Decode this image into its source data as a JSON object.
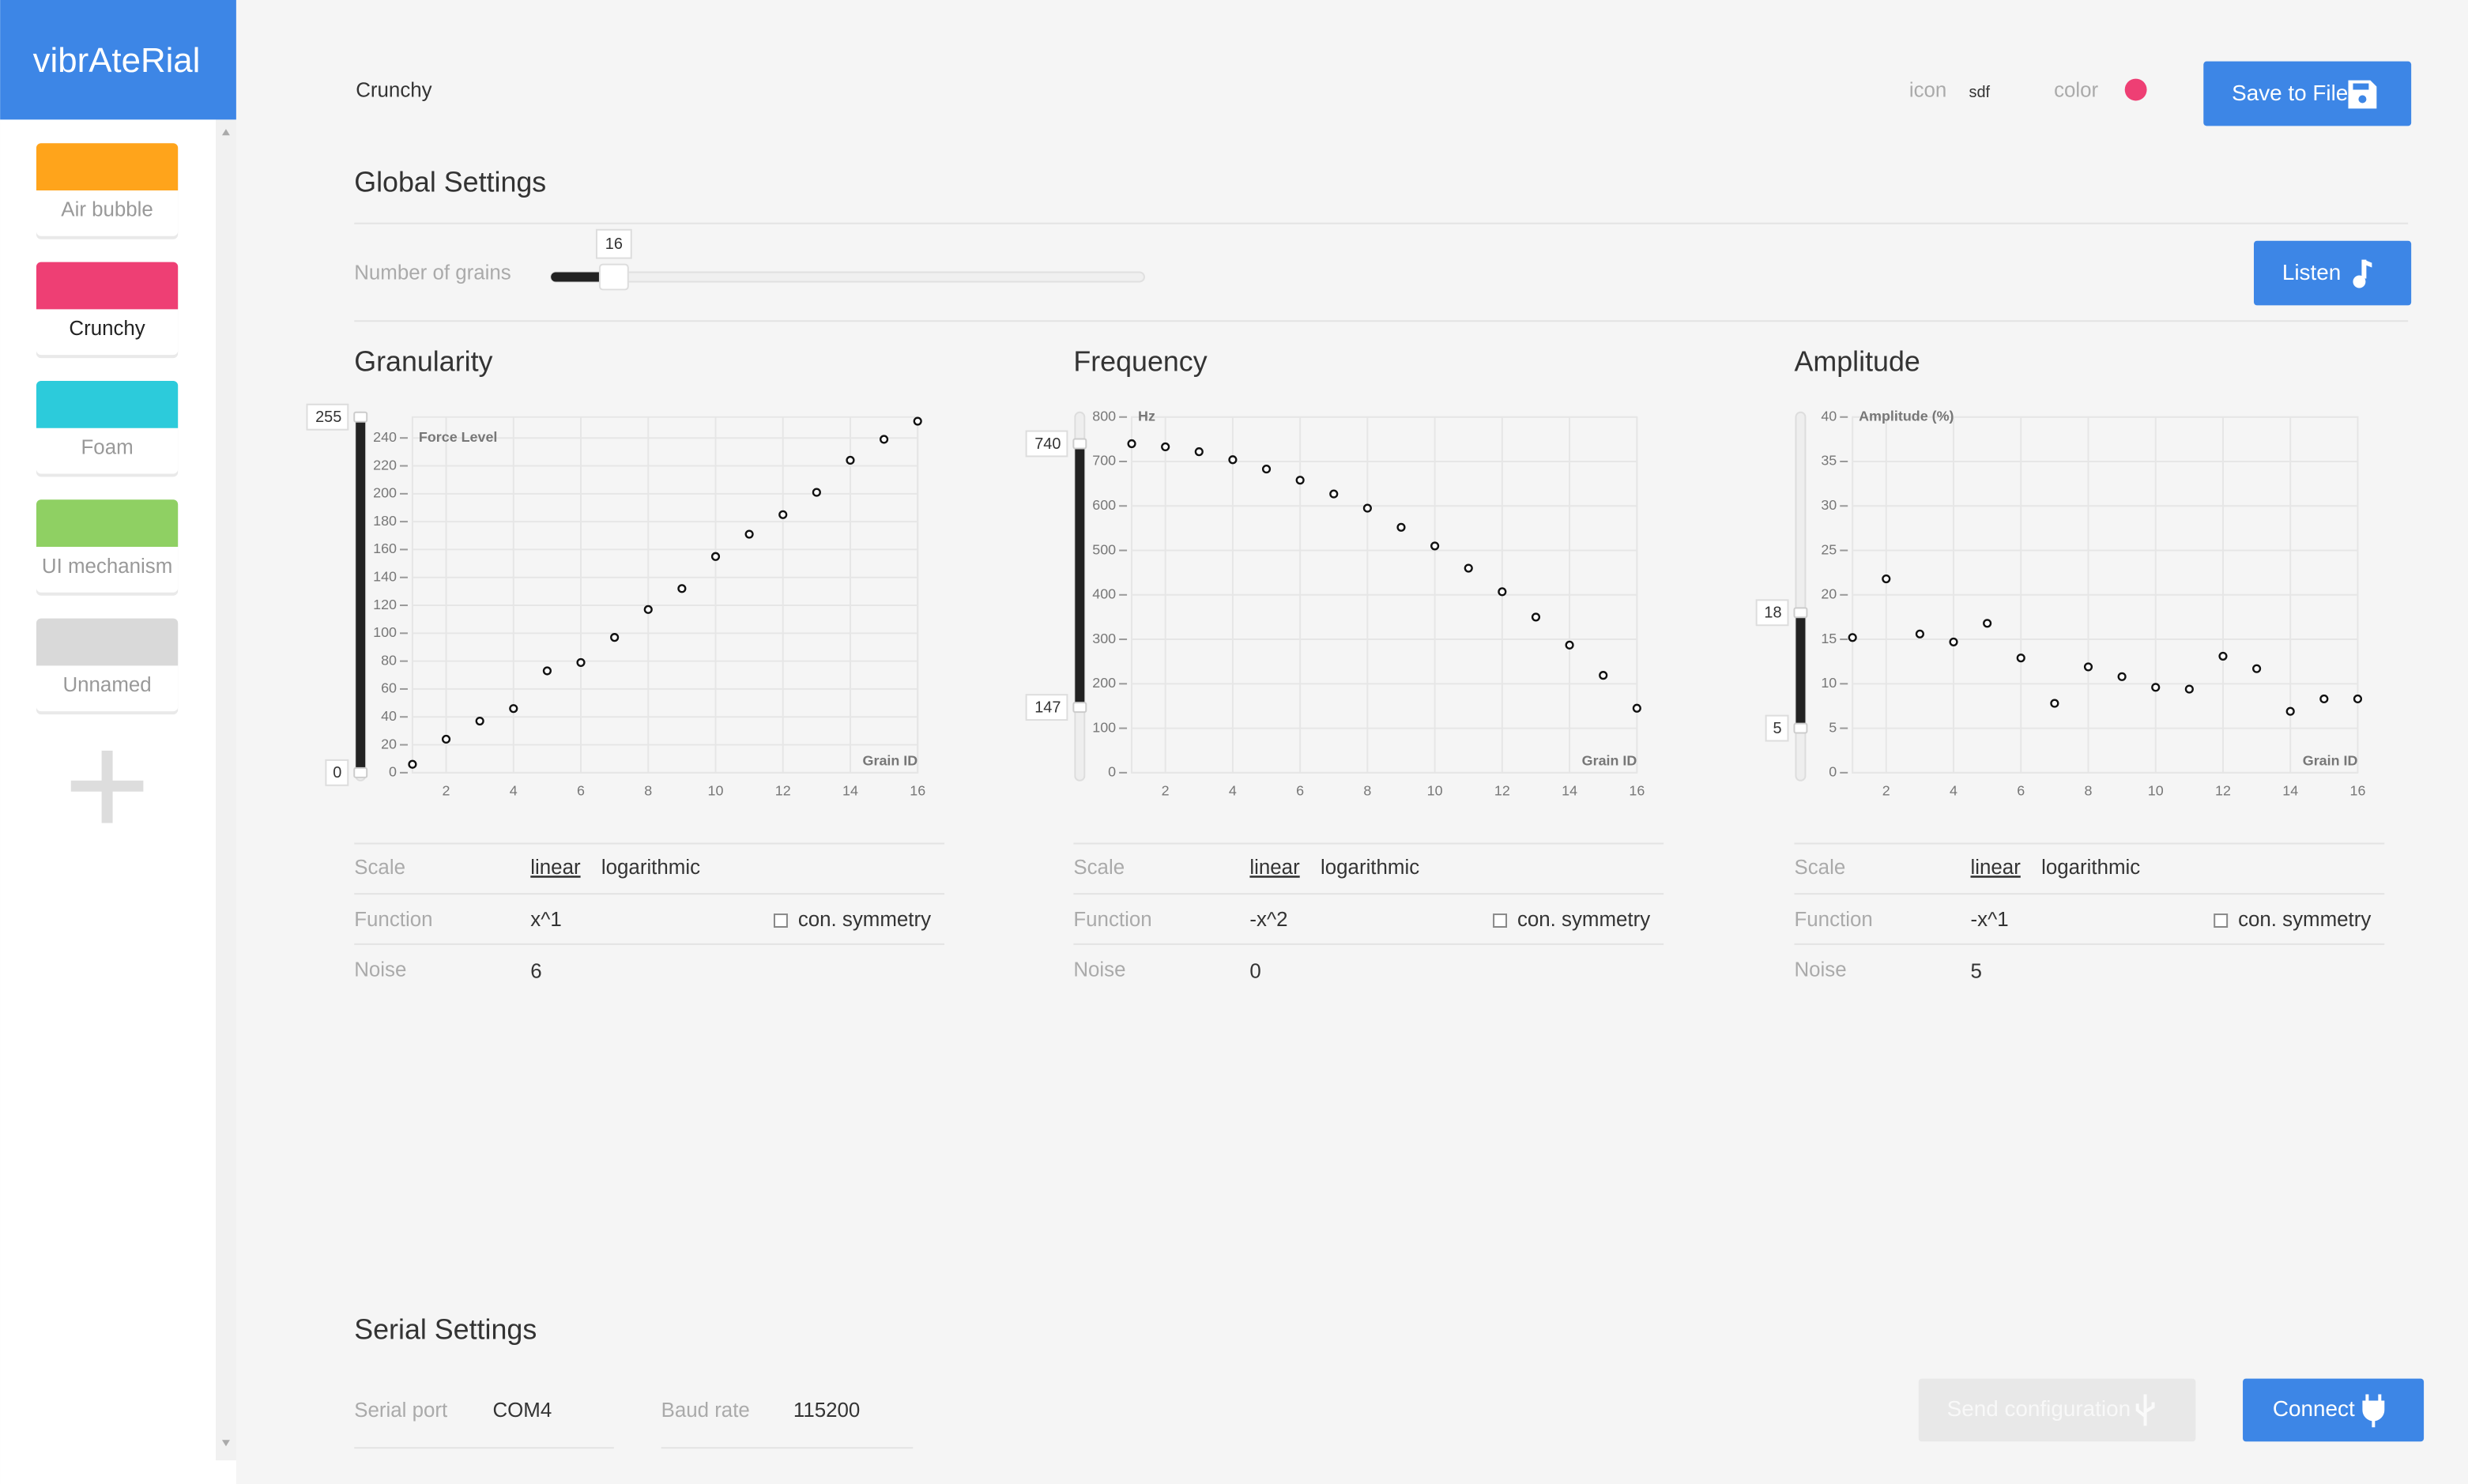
{
  "sidebar": {
    "brand": "vibrAteRial",
    "materials": [
      {
        "name": "Air bubble",
        "color": "#ffa41b"
      },
      {
        "name": "Crunchy",
        "color": "#ee3f74"
      },
      {
        "name": "Foam",
        "color": "#2ccbdb"
      },
      {
        "name": "UI mechanism",
        "color": "#8fd063"
      },
      {
        "name": "Unnamed",
        "color": "#d9d9d9"
      }
    ],
    "selected": "Crunchy"
  },
  "header": {
    "title": "Crunchy",
    "icon_label": "icon",
    "icon_value": "sdf",
    "color_label": "color",
    "color": "#ee3f74",
    "save_button": "Save to File"
  },
  "global_settings": {
    "title": "Global Settings",
    "grains_label": "Number of grains",
    "grains": 16,
    "listen_button": "Listen"
  },
  "chart_data": [
    {
      "type": "scatter",
      "title": "Granularity",
      "y_label": "Force Level",
      "x_label": "Grain ID",
      "x": [
        1,
        2,
        3,
        4,
        5,
        6,
        7,
        8,
        9,
        10,
        11,
        12,
        13,
        14,
        15,
        16
      ],
      "values": [
        6,
        24,
        37,
        46,
        73,
        79,
        97,
        117,
        132,
        155,
        171,
        185,
        201,
        224,
        239,
        252
      ],
      "color": "#111111",
      "xlim": [
        1,
        16
      ],
      "xticks": [
        2,
        4,
        6,
        8,
        10,
        12,
        14,
        16
      ],
      "ylim": [
        0,
        255
      ],
      "yticks": [
        0,
        20,
        40,
        60,
        80,
        100,
        120,
        140,
        160,
        180,
        200,
        220,
        240
      ],
      "grid": true,
      "selection": [
        255,
        0
      ]
    },
    {
      "type": "scatter",
      "title": "Frequency",
      "y_label": "Hz",
      "x_label": "Grain ID",
      "x": [
        1,
        2,
        3,
        4,
        5,
        6,
        7,
        8,
        9,
        10,
        11,
        12,
        13,
        14,
        15,
        16
      ],
      "values": [
        740,
        733,
        722,
        704,
        683,
        658,
        627,
        595,
        552,
        510,
        460,
        407,
        350,
        287,
        219,
        145
      ],
      "color": "#111111",
      "xlim": [
        1,
        16
      ],
      "xticks": [
        2,
        4,
        6,
        8,
        10,
        12,
        14,
        16
      ],
      "ylim": [
        0,
        800
      ],
      "yticks": [
        0,
        100,
        200,
        300,
        400,
        500,
        600,
        700,
        800
      ],
      "grid": true,
      "selection": [
        740,
        147
      ]
    },
    {
      "type": "scatter",
      "title": "Amplitude",
      "y_label": "Amplitude (%)",
      "x_label": "Grain ID",
      "x": [
        1,
        2,
        3,
        4,
        5,
        6,
        7,
        8,
        9,
        10,
        11,
        12,
        13,
        14,
        15,
        16
      ],
      "values": [
        15.2,
        21.8,
        15.6,
        14.7,
        16.8,
        12.9,
        7.8,
        11.9,
        10.8,
        9.6,
        9.4,
        13.1,
        11.7,
        6.9,
        8.3,
        8.3
      ],
      "color": "#111111",
      "xlim": [
        1,
        16
      ],
      "xticks": [
        2,
        4,
        6,
        8,
        10,
        12,
        14,
        16
      ],
      "ylim": [
        0,
        40
      ],
      "yticks": [
        0,
        5,
        10,
        15,
        20,
        25,
        30,
        35,
        40
      ],
      "grid": true,
      "selection": [
        18,
        5
      ]
    }
  ],
  "panels": [
    {
      "scale_label": "Scale",
      "scale_options": [
        "linear",
        "logarithmic"
      ],
      "function_label": "Function",
      "function": "x^1",
      "symmetry_label": "con. symmetry",
      "noise_label": "Noise",
      "noise": 6
    },
    {
      "scale_label": "Scale",
      "scale_options": [
        "linear",
        "logarithmic"
      ],
      "function_label": "Function",
      "function": "-x^2",
      "symmetry_label": "con. symmetry",
      "noise_label": "Noise",
      "noise": 0
    },
    {
      "scale_label": "Scale",
      "scale_options": [
        "linear",
        "logarithmic"
      ],
      "function_label": "Function",
      "function": "-x^1",
      "symmetry_label": "con. symmetry",
      "noise_label": "Noise",
      "noise": 5
    }
  ],
  "serial": {
    "title": "Serial Settings",
    "port_label": "Serial port",
    "port": "COM4",
    "baud_label": "Baud rate",
    "baud": 115200,
    "send_button": "Send configuration",
    "connect_button": "Connect"
  }
}
